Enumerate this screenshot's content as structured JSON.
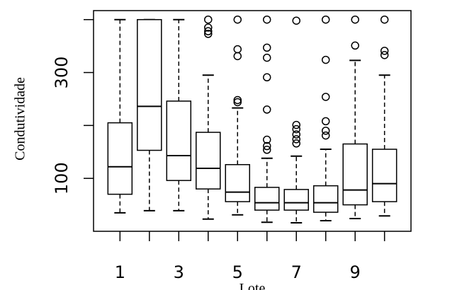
{
  "chart_data": {
    "type": "box",
    "xlabel": "Lote",
    "ylabel": "Condutividade",
    "categories": [
      "1",
      null,
      "3",
      null,
      "5",
      null,
      "7",
      null,
      "9",
      null
    ],
    "ylim": [
      0,
      417
    ],
    "yticks": [
      100,
      300
    ],
    "ytick_marks": [
      100,
      200,
      300,
      400
    ],
    "color": "#000000",
    "boxes": [
      {
        "min": 35,
        "q1": 70,
        "median": 122,
        "q3": 205,
        "max": 400,
        "outliers": []
      },
      {
        "min": 39,
        "q1": 153,
        "median": 236,
        "q3": 400,
        "max": 400,
        "outliers": []
      },
      {
        "min": 39,
        "q1": 96,
        "median": 143,
        "q3": 246,
        "max": 400,
        "outliers": []
      },
      {
        "min": 23,
        "q1": 80,
        "median": 119,
        "q3": 187,
        "max": 295,
        "outliers": [
          400,
          385,
          378,
          373
        ]
      },
      {
        "min": 31,
        "q1": 56,
        "median": 74,
        "q3": 126,
        "max": 233,
        "outliers": [
          400,
          344,
          331,
          248,
          244
        ]
      },
      {
        "min": 17,
        "q1": 40,
        "median": 54,
        "q3": 83,
        "max": 138,
        "outliers": [
          400,
          347,
          328,
          291,
          230,
          173,
          161,
          154
        ]
      },
      {
        "min": 16,
        "q1": 40,
        "median": 54,
        "q3": 79,
        "max": 142,
        "outliers": [
          398,
          201,
          193,
          183,
          174,
          166
        ]
      },
      {
        "min": 20,
        "q1": 36,
        "median": 54,
        "q3": 86,
        "max": 155,
        "outliers": [
          400,
          324,
          254,
          208,
          190,
          181
        ]
      },
      {
        "min": 24,
        "q1": 50,
        "median": 78,
        "q3": 165,
        "max": 323,
        "outliers": [
          400,
          351
        ]
      },
      {
        "min": 29,
        "q1": 56,
        "median": 90,
        "q3": 155,
        "max": 295,
        "outliers": [
          400,
          341,
          333
        ]
      }
    ]
  }
}
